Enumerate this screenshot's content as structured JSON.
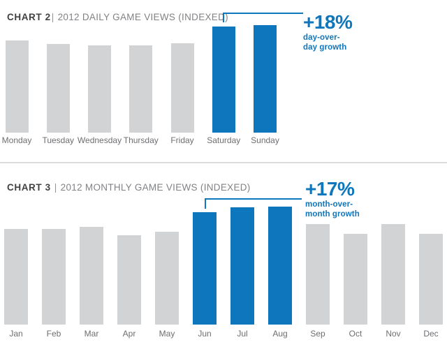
{
  "colors": {
    "bar_gray": "#d1d3d4",
    "bar_blue": "#0e76bc",
    "accent_blue": "#0e76bc",
    "title_dark": "#414042",
    "title_light": "#808285",
    "axis_label_gray": "#6d6e71",
    "divider_gray": "#dbdbdc"
  },
  "chart_data": [
    {
      "type": "bar",
      "title_label": "CHART 2",
      "title_sep": "|",
      "title_text": "2012 DAILY GAME VIEWS (INDEXED)",
      "title": "CHART 2 | 2012 DAILY GAME VIEWS (INDEXED)",
      "categories": [
        "Monday",
        "Tuesday",
        "Wednesday",
        "Thursday",
        "Friday",
        "Saturday",
        "Sunday"
      ],
      "values": [
        103,
        99,
        98,
        98,
        100,
        119,
        120
      ],
      "highlighted": [
        "Saturday",
        "Sunday"
      ],
      "annotation": {
        "value": "+18%",
        "lines": [
          "day-over-",
          "day growth"
        ]
      },
      "xlabel": "",
      "ylabel": "",
      "ylim": [
        0,
        130
      ],
      "grid": false,
      "legend": "none",
      "y_axis_hidden": true
    },
    {
      "type": "bar",
      "title_label": "CHART 3",
      "title_sep": "|",
      "title_text": "2012 MONTHLY GAME VIEWS (INDEXED)",
      "title": "CHART 3 | 2012 MONTHLY GAME VIEWS (INDEXED)",
      "categories": [
        "Jan",
        "Feb",
        "Mar",
        "Apr",
        "May",
        "Jun",
        "Jul",
        "Aug",
        "Sep",
        "Oct",
        "Nov",
        "Dec"
      ],
      "values": [
        103,
        103,
        105,
        96,
        100,
        121,
        126,
        127,
        108,
        98,
        108,
        98
      ],
      "highlighted": [
        "Jun",
        "Jul",
        "Aug"
      ],
      "annotation": {
        "value": "+17%",
        "lines": [
          "month-over-",
          "month growth"
        ]
      },
      "xlabel": "",
      "ylabel": "",
      "ylim": [
        0,
        135
      ],
      "grid": false,
      "legend": "none",
      "y_axis_hidden": true
    }
  ]
}
